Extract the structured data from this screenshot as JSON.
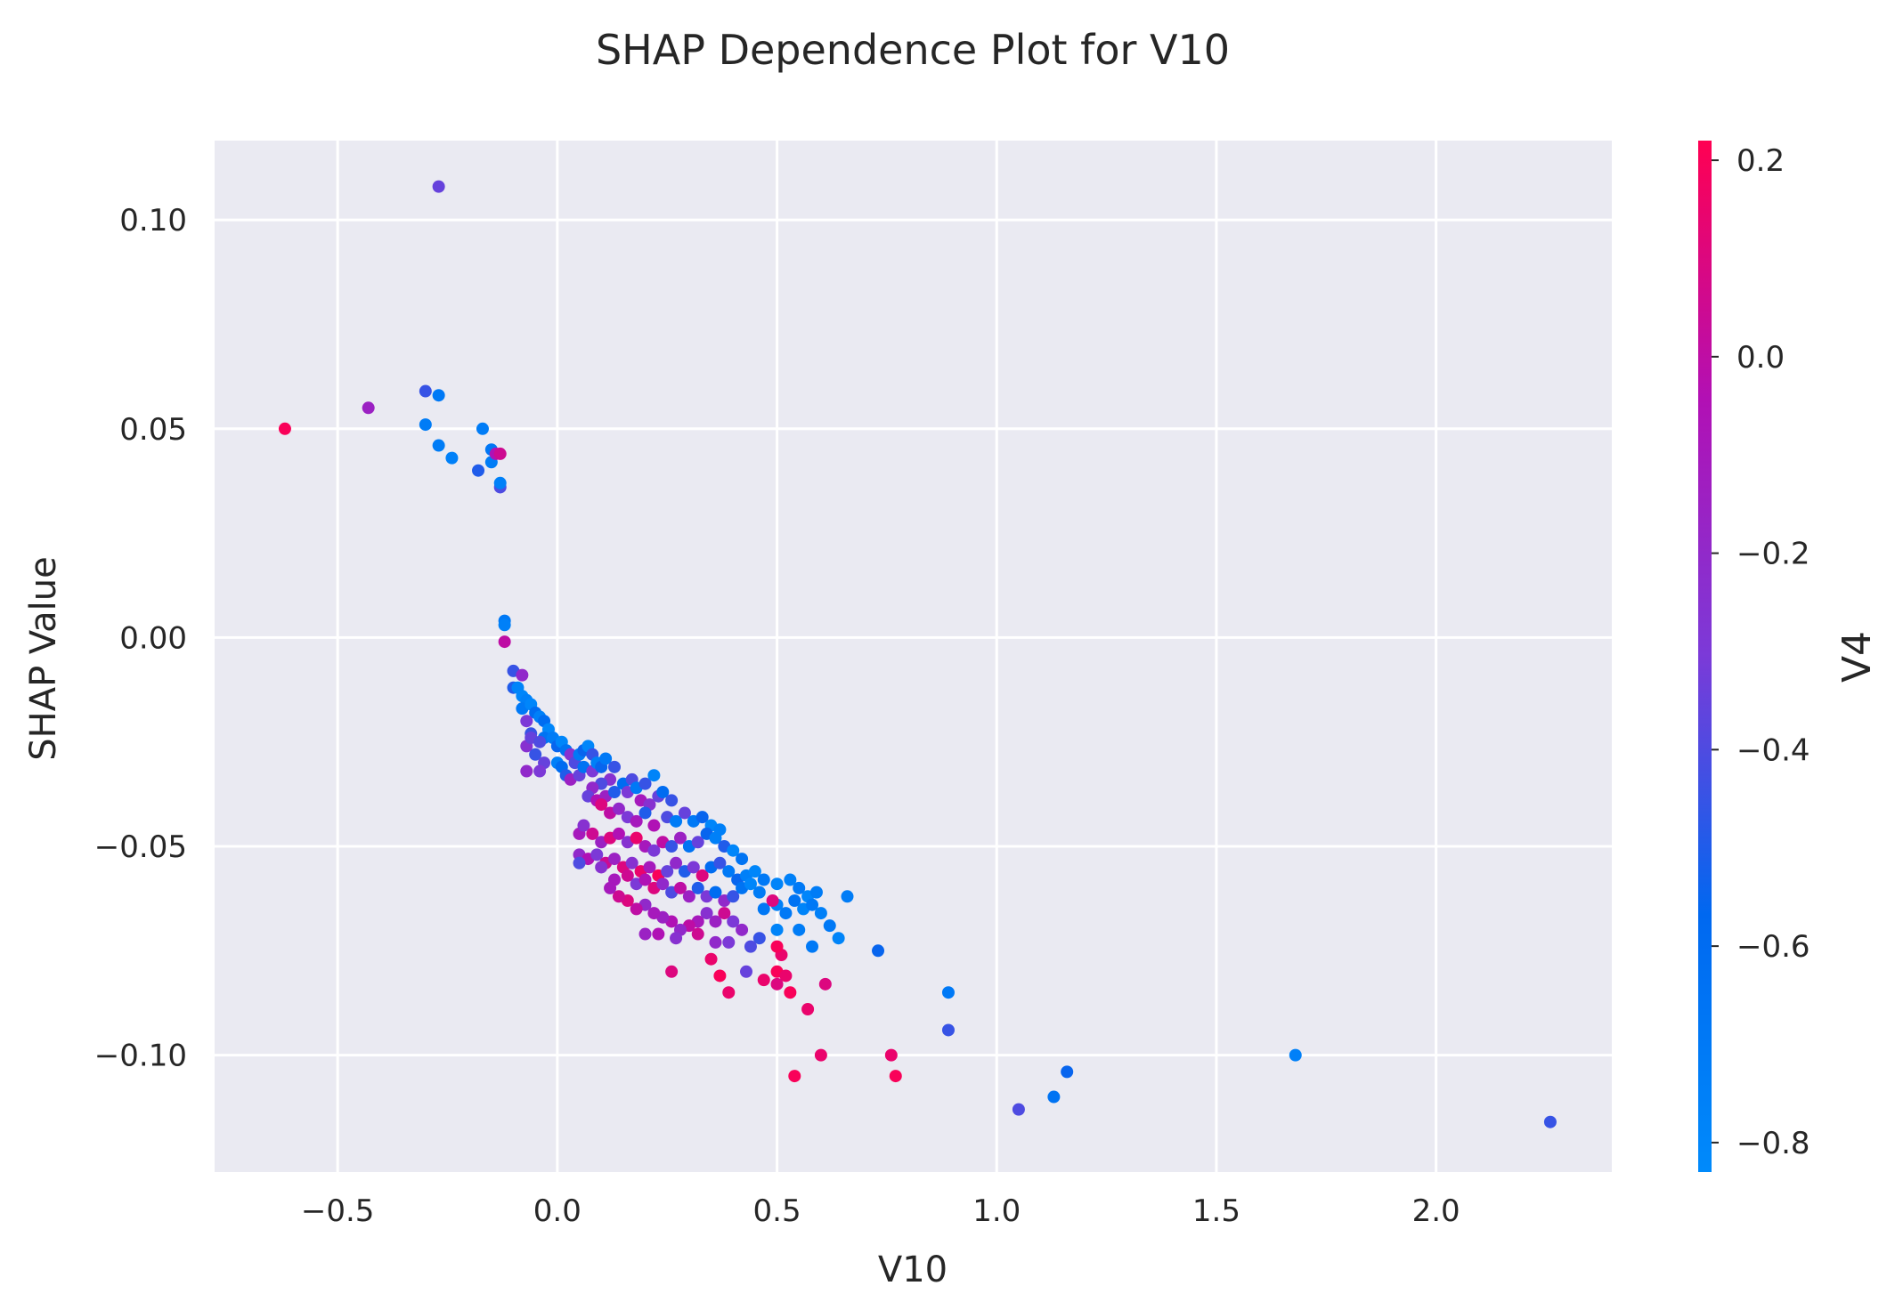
{
  "chart_data": {
    "type": "scatter",
    "title": "SHAP Dependence Plot for V10",
    "xlabel": "V10",
    "ylabel": "SHAP Value",
    "xlim": [
      -0.78,
      2.4
    ],
    "ylim": [
      -0.128,
      0.119
    ],
    "xticks": [
      -0.5,
      0.0,
      0.5,
      1.0,
      1.5,
      2.0
    ],
    "xtick_labels": [
      "−0.5",
      "0.0",
      "0.5",
      "1.0",
      "1.5",
      "2.0"
    ],
    "yticks": [
      0.1,
      0.05,
      0.0,
      -0.05,
      -0.1
    ],
    "ytick_labels": [
      "0.10",
      "0.05",
      "0.00",
      "−0.05",
      "−0.10"
    ],
    "grid": true,
    "background": "#eaeaf2",
    "colorbar": {
      "label": "V4",
      "range": [
        -0.83,
        0.22
      ],
      "ticks": [
        0.2,
        0.0,
        -0.2,
        -0.4,
        -0.6,
        -0.8
      ],
      "tick_labels": [
        "0.2",
        "0.0",
        "−0.2",
        "−0.4",
        "−0.6",
        "−0.8"
      ],
      "colors": [
        "#008afb",
        "#0068f0",
        "#7b3ad8",
        "#b210b4",
        "#ff0052"
      ]
    },
    "points": [
      [
        -0.27,
        0.108,
        -0.35
      ],
      [
        -0.62,
        0.05,
        0.2
      ],
      [
        -0.43,
        0.055,
        -0.15
      ],
      [
        -0.3,
        0.059,
        -0.45
      ],
      [
        -0.27,
        0.058,
        -0.7
      ],
      [
        -0.3,
        0.051,
        -0.72
      ],
      [
        -0.27,
        0.046,
        -0.72
      ],
      [
        -0.24,
        0.043,
        -0.75
      ],
      [
        -0.17,
        0.05,
        -0.72
      ],
      [
        -0.15,
        0.045,
        -0.68
      ],
      [
        -0.15,
        0.042,
        -0.72
      ],
      [
        -0.18,
        0.04,
        -0.5
      ],
      [
        -0.14,
        0.044,
        -0.05
      ],
      [
        -0.13,
        0.044,
        0.05
      ],
      [
        -0.13,
        0.036,
        -0.4
      ],
      [
        -0.13,
        0.037,
        -0.75
      ],
      [
        -0.12,
        0.004,
        -0.7
      ],
      [
        -0.12,
        0.003,
        -0.75
      ],
      [
        -0.12,
        -0.001,
        0.0
      ],
      [
        -0.1,
        -0.008,
        -0.45
      ],
      [
        -0.08,
        -0.009,
        -0.2
      ],
      [
        -0.1,
        -0.012,
        -0.5
      ],
      [
        -0.09,
        -0.012,
        -0.78
      ],
      [
        -0.08,
        -0.014,
        -0.8
      ],
      [
        -0.07,
        -0.015,
        -0.75
      ],
      [
        -0.08,
        -0.017,
        -0.7
      ],
      [
        -0.06,
        -0.016,
        -0.8
      ],
      [
        -0.05,
        -0.018,
        -0.6
      ],
      [
        -0.07,
        -0.02,
        -0.3
      ],
      [
        -0.04,
        -0.019,
        -0.75
      ],
      [
        -0.03,
        -0.02,
        -0.6
      ],
      [
        -0.06,
        -0.023,
        -0.45
      ],
      [
        -0.02,
        -0.022,
        -0.8
      ],
      [
        -0.03,
        -0.024,
        -0.65
      ],
      [
        -0.07,
        -0.026,
        -0.25
      ],
      [
        -0.06,
        -0.024,
        -0.35
      ],
      [
        -0.04,
        -0.025,
        -0.4
      ],
      [
        -0.01,
        -0.024,
        -0.72
      ],
      [
        0.0,
        -0.026,
        -0.55
      ],
      [
        0.01,
        -0.025,
        -0.8
      ],
      [
        -0.05,
        -0.028,
        -0.45
      ],
      [
        -0.03,
        -0.03,
        -0.35
      ],
      [
        0.02,
        -0.027,
        -0.65
      ],
      [
        -0.07,
        -0.032,
        -0.2
      ],
      [
        -0.04,
        -0.032,
        -0.3
      ],
      [
        0.0,
        -0.03,
        -0.75
      ],
      [
        0.01,
        -0.031,
        -0.6
      ],
      [
        0.03,
        -0.028,
        -0.25
      ],
      [
        0.04,
        -0.03,
        -0.4
      ],
      [
        0.05,
        -0.028,
        -0.7
      ],
      [
        0.06,
        -0.027,
        -0.55
      ],
      [
        0.07,
        -0.026,
        -0.8
      ],
      [
        0.08,
        -0.028,
        -0.45
      ],
      [
        0.02,
        -0.033,
        -0.5
      ],
      [
        0.03,
        -0.034,
        -0.15
      ],
      [
        0.05,
        -0.033,
        -0.35
      ],
      [
        0.06,
        -0.031,
        -0.65
      ],
      [
        0.08,
        -0.032,
        -0.3
      ],
      [
        0.09,
        -0.03,
        -0.75
      ],
      [
        0.1,
        -0.031,
        -0.55
      ],
      [
        0.11,
        -0.029,
        -0.7
      ],
      [
        0.13,
        -0.031,
        -0.45
      ],
      [
        0.12,
        -0.034,
        -0.25
      ],
      [
        0.1,
        -0.035,
        -0.4
      ],
      [
        0.08,
        -0.036,
        -0.2
      ],
      [
        0.07,
        -0.038,
        -0.35
      ],
      [
        0.09,
        -0.039,
        -0.05
      ],
      [
        0.11,
        -0.038,
        -0.15
      ],
      [
        0.13,
        -0.037,
        -0.5
      ],
      [
        0.15,
        -0.035,
        -0.6
      ],
      [
        0.16,
        -0.037,
        -0.3
      ],
      [
        0.17,
        -0.034,
        -0.4
      ],
      [
        0.18,
        -0.036,
        -0.7
      ],
      [
        0.2,
        -0.035,
        -0.45
      ],
      [
        0.22,
        -0.033,
        -0.78
      ],
      [
        0.19,
        -0.039,
        -0.1
      ],
      [
        0.21,
        -0.04,
        -0.25
      ],
      [
        0.23,
        -0.038,
        -0.35
      ],
      [
        0.24,
        -0.037,
        -0.6
      ],
      [
        0.26,
        -0.039,
        -0.45
      ],
      [
        0.1,
        -0.04,
        0.1
      ],
      [
        0.12,
        -0.042,
        0.0
      ],
      [
        0.14,
        -0.041,
        -0.2
      ],
      [
        0.16,
        -0.043,
        -0.3
      ],
      [
        0.18,
        -0.044,
        -0.1
      ],
      [
        0.2,
        -0.042,
        -0.5
      ],
      [
        0.22,
        -0.045,
        -0.05
      ],
      [
        0.25,
        -0.043,
        -0.4
      ],
      [
        0.27,
        -0.044,
        -0.72
      ],
      [
        0.29,
        -0.042,
        -0.35
      ],
      [
        0.31,
        -0.044,
        -0.7
      ],
      [
        0.33,
        -0.043,
        -0.55
      ],
      [
        0.35,
        -0.045,
        -0.8
      ],
      [
        0.37,
        -0.046,
        -0.75
      ],
      [
        0.05,
        -0.047,
        -0.1
      ],
      [
        0.06,
        -0.045,
        -0.25
      ],
      [
        0.08,
        -0.047,
        0.05
      ],
      [
        0.1,
        -0.049,
        -0.15
      ],
      [
        0.12,
        -0.048,
        0.1
      ],
      [
        0.14,
        -0.047,
        -0.05
      ],
      [
        0.16,
        -0.049,
        -0.25
      ],
      [
        0.18,
        -0.048,
        0.15
      ],
      [
        0.2,
        -0.05,
        -0.1
      ],
      [
        0.22,
        -0.051,
        -0.3
      ],
      [
        0.24,
        -0.049,
        0.0
      ],
      [
        0.26,
        -0.05,
        -0.45
      ],
      [
        0.28,
        -0.048,
        -0.15
      ],
      [
        0.3,
        -0.05,
        -0.65
      ],
      [
        0.32,
        -0.049,
        -0.35
      ],
      [
        0.34,
        -0.047,
        -0.55
      ],
      [
        0.36,
        -0.048,
        -0.75
      ],
      [
        0.38,
        -0.05,
        -0.5
      ],
      [
        0.4,
        -0.051,
        -0.8
      ],
      [
        0.42,
        -0.053,
        -0.65
      ],
      [
        0.05,
        -0.052,
        -0.2
      ],
      [
        0.07,
        -0.053,
        -0.05
      ],
      [
        0.09,
        -0.052,
        -0.3
      ],
      [
        0.11,
        -0.054,
        0.05
      ],
      [
        0.13,
        -0.053,
        -0.15
      ],
      [
        0.15,
        -0.055,
        0.1
      ],
      [
        0.17,
        -0.054,
        -0.25
      ],
      [
        0.19,
        -0.056,
        0.15
      ],
      [
        0.21,
        -0.055,
        -0.1
      ],
      [
        0.23,
        -0.057,
        0.2
      ],
      [
        0.25,
        -0.056,
        -0.35
      ],
      [
        0.27,
        -0.054,
        -0.2
      ],
      [
        0.29,
        -0.056,
        -0.5
      ],
      [
        0.31,
        -0.055,
        -0.3
      ],
      [
        0.33,
        -0.057,
        0.1
      ],
      [
        0.35,
        -0.055,
        -0.6
      ],
      [
        0.37,
        -0.054,
        -0.45
      ],
      [
        0.39,
        -0.056,
        -0.7
      ],
      [
        0.41,
        -0.058,
        -0.55
      ],
      [
        0.43,
        -0.057,
        -0.75
      ],
      [
        0.45,
        -0.056,
        -0.8
      ],
      [
        0.47,
        -0.058,
        -0.7
      ],
      [
        0.05,
        -0.054,
        -0.4
      ],
      [
        0.1,
        -0.055,
        -0.25
      ],
      [
        0.13,
        -0.058,
        -0.1
      ],
      [
        0.16,
        -0.057,
        0.05
      ],
      [
        0.18,
        -0.059,
        -0.3
      ],
      [
        0.2,
        -0.058,
        -0.05
      ],
      [
        0.22,
        -0.06,
        0.1
      ],
      [
        0.24,
        -0.059,
        -0.2
      ],
      [
        0.26,
        -0.061,
        -0.4
      ],
      [
        0.28,
        -0.06,
        0.0
      ],
      [
        0.3,
        -0.062,
        -0.15
      ],
      [
        0.32,
        -0.06,
        -0.5
      ],
      [
        0.34,
        -0.062,
        -0.3
      ],
      [
        0.36,
        -0.061,
        -0.6
      ],
      [
        0.38,
        -0.063,
        -0.2
      ],
      [
        0.4,
        -0.062,
        -0.45
      ],
      [
        0.42,
        -0.06,
        -0.65
      ],
      [
        0.44,
        -0.059,
        -0.8
      ],
      [
        0.46,
        -0.061,
        -0.72
      ],
      [
        0.5,
        -0.059,
        -0.78
      ],
      [
        0.53,
        -0.058,
        -0.75
      ],
      [
        0.55,
        -0.06,
        -0.7
      ],
      [
        0.57,
        -0.062,
        -0.8
      ],
      [
        0.59,
        -0.061,
        -0.72
      ],
      [
        0.54,
        -0.063,
        -0.65
      ],
      [
        0.56,
        -0.065,
        -0.78
      ],
      [
        0.58,
        -0.064,
        -0.7
      ],
      [
        0.6,
        -0.066,
        -0.75
      ],
      [
        0.52,
        -0.066,
        -0.7
      ],
      [
        0.5,
        -0.064,
        -0.75
      ],
      [
        0.47,
        -0.065,
        -0.68
      ],
      [
        0.49,
        -0.063,
        0.1
      ],
      [
        0.66,
        -0.062,
        -0.72
      ],
      [
        0.62,
        -0.069,
        -0.7
      ],
      [
        0.64,
        -0.072,
        -0.78
      ],
      [
        0.58,
        -0.074,
        -0.7
      ],
      [
        0.55,
        -0.07,
        -0.72
      ],
      [
        0.5,
        -0.07,
        -0.78
      ],
      [
        0.46,
        -0.072,
        -0.45
      ],
      [
        0.44,
        -0.074,
        -0.4
      ],
      [
        0.42,
        -0.07,
        -0.2
      ],
      [
        0.4,
        -0.068,
        -0.3
      ],
      [
        0.38,
        -0.066,
        0.05
      ],
      [
        0.36,
        -0.068,
        -0.15
      ],
      [
        0.34,
        -0.066,
        -0.25
      ],
      [
        0.32,
        -0.068,
        -0.1
      ],
      [
        0.3,
        -0.069,
        0.0
      ],
      [
        0.28,
        -0.07,
        -0.2
      ],
      [
        0.26,
        -0.068,
        -0.05
      ],
      [
        0.24,
        -0.067,
        -0.15
      ],
      [
        0.22,
        -0.066,
        -0.1
      ],
      [
        0.2,
        -0.064,
        -0.2
      ],
      [
        0.18,
        -0.065,
        0.0
      ],
      [
        0.16,
        -0.063,
        0.1
      ],
      [
        0.14,
        -0.062,
        0.05
      ],
      [
        0.12,
        -0.06,
        -0.1
      ],
      [
        0.2,
        -0.071,
        -0.15
      ],
      [
        0.23,
        -0.071,
        -0.05
      ],
      [
        0.27,
        -0.072,
        -0.25
      ],
      [
        0.32,
        -0.071,
        0.05
      ],
      [
        0.36,
        -0.073,
        -0.2
      ],
      [
        0.39,
        -0.073,
        -0.3
      ],
      [
        0.26,
        -0.08,
        0.1
      ],
      [
        0.35,
        -0.077,
        0.15
      ],
      [
        0.37,
        -0.081,
        0.2
      ],
      [
        0.39,
        -0.085,
        0.15
      ],
      [
        0.43,
        -0.08,
        -0.35
      ],
      [
        0.47,
        -0.082,
        0.15
      ],
      [
        0.5,
        -0.08,
        0.2
      ],
      [
        0.52,
        -0.081,
        0.15
      ],
      [
        0.5,
        -0.083,
        0.1
      ],
      [
        0.53,
        -0.085,
        0.2
      ],
      [
        0.57,
        -0.089,
        0.15
      ],
      [
        0.61,
        -0.083,
        0.1
      ],
      [
        0.51,
        -0.076,
        0.15
      ],
      [
        0.5,
        -0.074,
        0.2
      ],
      [
        0.73,
        -0.075,
        -0.55
      ],
      [
        0.89,
        -0.085,
        -0.7
      ],
      [
        0.89,
        -0.094,
        -0.45
      ],
      [
        0.6,
        -0.1,
        0.15
      ],
      [
        0.54,
        -0.105,
        0.2
      ],
      [
        0.76,
        -0.1,
        0.15
      ],
      [
        0.77,
        -0.105,
        0.2
      ],
      [
        1.05,
        -0.113,
        -0.4
      ],
      [
        1.13,
        -0.11,
        -0.65
      ],
      [
        1.16,
        -0.104,
        -0.55
      ],
      [
        1.68,
        -0.1,
        -0.75
      ],
      [
        2.26,
        -0.116,
        -0.45
      ]
    ]
  }
}
